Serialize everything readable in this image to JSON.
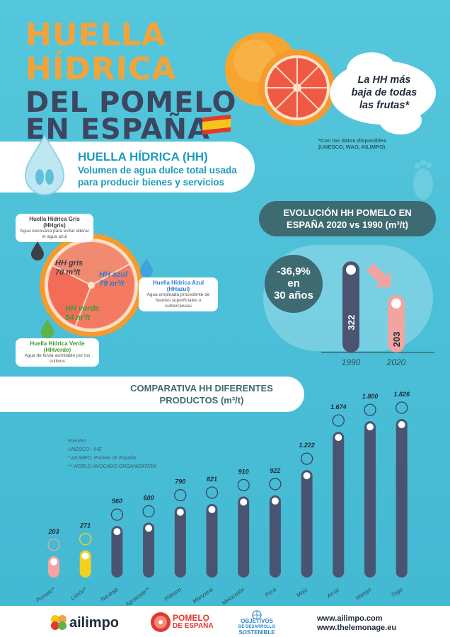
{
  "header": {
    "title_line1": "HUELLA",
    "title_line2": "HÍDRICA",
    "title_line3": "DEL POMELO",
    "title_line4": "EN ESPAÑA"
  },
  "callout": {
    "line1": "La HH más",
    "line2": "baja de todas",
    "line3": "las frutas*"
  },
  "data_note": {
    "line1": "*Con los datos disponibles",
    "line2": "(UNESCO, WAO, AILIMPO)"
  },
  "definition": {
    "title": "HUELLA HÍDRICA (HH)",
    "subtitle": "Volumen de agua dulce total usada para producir bienes y servicios"
  },
  "composition": {
    "gris_title": "Huella Hídrica Gris (HHgris)",
    "gris_desc": "Agua necesaria para evitar alterar el agua azul",
    "azul_title": "Huella Hídrica Azul (HHazul)",
    "azul_desc": "Agua empleada procedente de fuentes superficiales o subterráneas",
    "verde_title": "Huella Hídrica Verde (HHverde)",
    "verde_desc": "Agua de lluvia asimilable por los cultivos",
    "seg_gris_label": "HH gris",
    "seg_gris_value": "70 m³/t",
    "seg_azul_label": "HH azul",
    "seg_azul_value": "79 m³/t",
    "seg_verde_label": "HH verde",
    "seg_verde_value": "54 m³/t"
  },
  "evolution": {
    "heading_line1": "EVOLUCIÓN HH POMELO EN",
    "heading_line2": "ESPAÑA 2020 vs 1990 (m³/t)",
    "change_pct": "-36,9%",
    "change_en": "en",
    "change_years": "30 años"
  },
  "comparison": {
    "heading_line1": "COMPARATIVA HH DIFERENTES",
    "heading_line2": "PRODUCTOS (m³/t)"
  },
  "sources": {
    "title": "Fuentes:",
    "line1": "UNESCO - IHE",
    "line2": "* AILIMPO, Pomelo de España",
    "line3": "** WORLD AVOCADO ORGANIZATION"
  },
  "footer": {
    "ailimpo": "ailimpo",
    "pomelo_line1": "POMELO",
    "pomelo_line2": "DE ESPAÑA",
    "ods_line1": "OBJETIVOS",
    "ods_line2": "DE DESARROLLO",
    "ods_line3": "SOSTENIBLE",
    "web1": "www.ailimpo.com",
    "web2": "www.thelemonage.eu"
  },
  "colors": {
    "background": "#4cc0d8",
    "title_orange": "#f2a33a",
    "title_dark": "#3d4660",
    "bar_dark": "#4a5470",
    "pomelo_bar": "#f2a5a0",
    "limon_bar": "#f5d11d",
    "azul": "#3da3db",
    "verde": "#5fb246",
    "gris": "#3d3f47"
  },
  "chart_data": [
    {
      "type": "pie",
      "categories": [
        "HH gris",
        "HH azul",
        "HH verde"
      ],
      "values": [
        70,
        79,
        54
      ]
    },
    {
      "type": "bar",
      "categories": [
        "1990",
        "2020"
      ],
      "values": [
        322,
        203
      ]
    },
    {
      "type": "bar",
      "categories": [
        "Pomelo*",
        "Limón*",
        "Naranja",
        "Aguacate**",
        "Plátano",
        "Manzana",
        "Melocotón",
        "Pera",
        "Maíz",
        "Arroz",
        "Mango",
        "Trigo"
      ],
      "values": [
        203,
        271,
        560,
        600,
        790,
        821,
        910,
        922,
        1222,
        1674,
        1800,
        1826
      ],
      "value_labels": [
        "203",
        "271",
        "560",
        "600",
        "790",
        "821",
        "910",
        "922",
        "1.222",
        "1.674",
        "1.800",
        "1.826"
      ]
    }
  ]
}
